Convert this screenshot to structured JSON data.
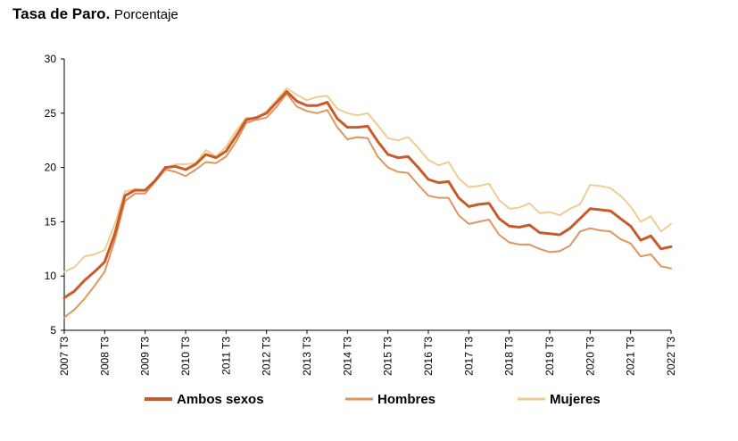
{
  "header": {
    "title": "Tasa de Paro.",
    "subtitle": "Porcentaje"
  },
  "chart_data": {
    "type": "line",
    "title": "Tasa de Paro. Porcentaje",
    "xlabel": "",
    "ylabel": "",
    "ylim": [
      5,
      30
    ],
    "yticks": [
      "5",
      "10",
      "15",
      "20",
      "25",
      "30"
    ],
    "x_labels": [
      "2007  T3",
      "2008  T3",
      "2009  T3",
      "2010  T3",
      "2011  T3",
      "2012  T3",
      "2013  T3",
      "2014  T3",
      "2015  T3",
      "2016  T3",
      "2017  T3",
      "2018  T3",
      "2019  T3",
      "2020  T3",
      "2021  T3",
      "2022  T3"
    ],
    "grid": false,
    "legend_position": "bottom",
    "series": [
      {
        "name": "Ambos sexos",
        "color": "#c75b2a",
        "width": 3,
        "values": [
          8.0,
          8.6,
          9.6,
          10.4,
          11.3,
          13.9,
          17.4,
          17.9,
          17.9,
          18.8,
          20.0,
          20.1,
          19.8,
          20.3,
          21.2,
          20.9,
          21.5,
          22.9,
          24.4,
          24.6,
          25.0,
          26.0,
          27.0,
          26.1,
          25.7,
          25.7,
          26.0,
          24.5,
          23.7,
          23.7,
          23.8,
          22.4,
          21.2,
          20.9,
          21.0,
          20.0,
          18.9,
          18.6,
          18.7,
          17.2,
          16.4,
          16.6,
          16.7,
          15.3,
          14.6,
          14.5,
          14.7,
          14.0,
          13.9,
          13.8,
          14.4,
          15.3,
          16.2,
          16.1,
          16.0,
          15.3,
          14.6,
          13.3,
          13.7,
          12.5,
          12.7
        ]
      },
      {
        "name": "Hombres",
        "color": "#e0955f",
        "width": 2,
        "values": [
          6.2,
          6.9,
          7.9,
          9.1,
          10.4,
          13.3,
          16.9,
          17.6,
          17.6,
          18.7,
          19.8,
          19.6,
          19.2,
          19.8,
          20.5,
          20.4,
          21.0,
          22.4,
          24.1,
          24.4,
          24.6,
          25.6,
          26.8,
          25.6,
          25.2,
          25.0,
          25.3,
          23.7,
          22.6,
          22.8,
          22.7,
          21.0,
          20.0,
          19.6,
          19.5,
          18.4,
          17.4,
          17.2,
          17.2,
          15.6,
          14.8,
          15.0,
          15.2,
          13.8,
          13.1,
          12.9,
          12.9,
          12.5,
          12.2,
          12.3,
          12.8,
          14.1,
          14.4,
          14.2,
          14.1,
          13.4,
          13.0,
          11.8,
          12.0,
          10.9,
          10.7
        ]
      },
      {
        "name": "Mujeres",
        "color": "#f0cc90",
        "width": 2,
        "values": [
          10.4,
          10.8,
          11.8,
          12.0,
          12.4,
          14.8,
          17.8,
          18.0,
          17.9,
          18.9,
          19.9,
          20.3,
          20.3,
          20.4,
          21.6,
          21.0,
          21.9,
          23.4,
          24.6,
          24.5,
          25.2,
          26.2,
          27.3,
          26.7,
          26.2,
          26.5,
          26.6,
          25.4,
          25.0,
          24.8,
          25.0,
          23.9,
          22.7,
          22.5,
          22.8,
          21.8,
          20.7,
          20.2,
          20.5,
          19.0,
          18.2,
          18.3,
          18.5,
          17.0,
          16.2,
          16.3,
          16.7,
          15.8,
          15.9,
          15.6,
          16.2,
          16.6,
          18.4,
          18.3,
          18.1,
          17.4,
          16.4,
          15.0,
          15.5,
          14.1,
          14.8
        ]
      }
    ]
  }
}
